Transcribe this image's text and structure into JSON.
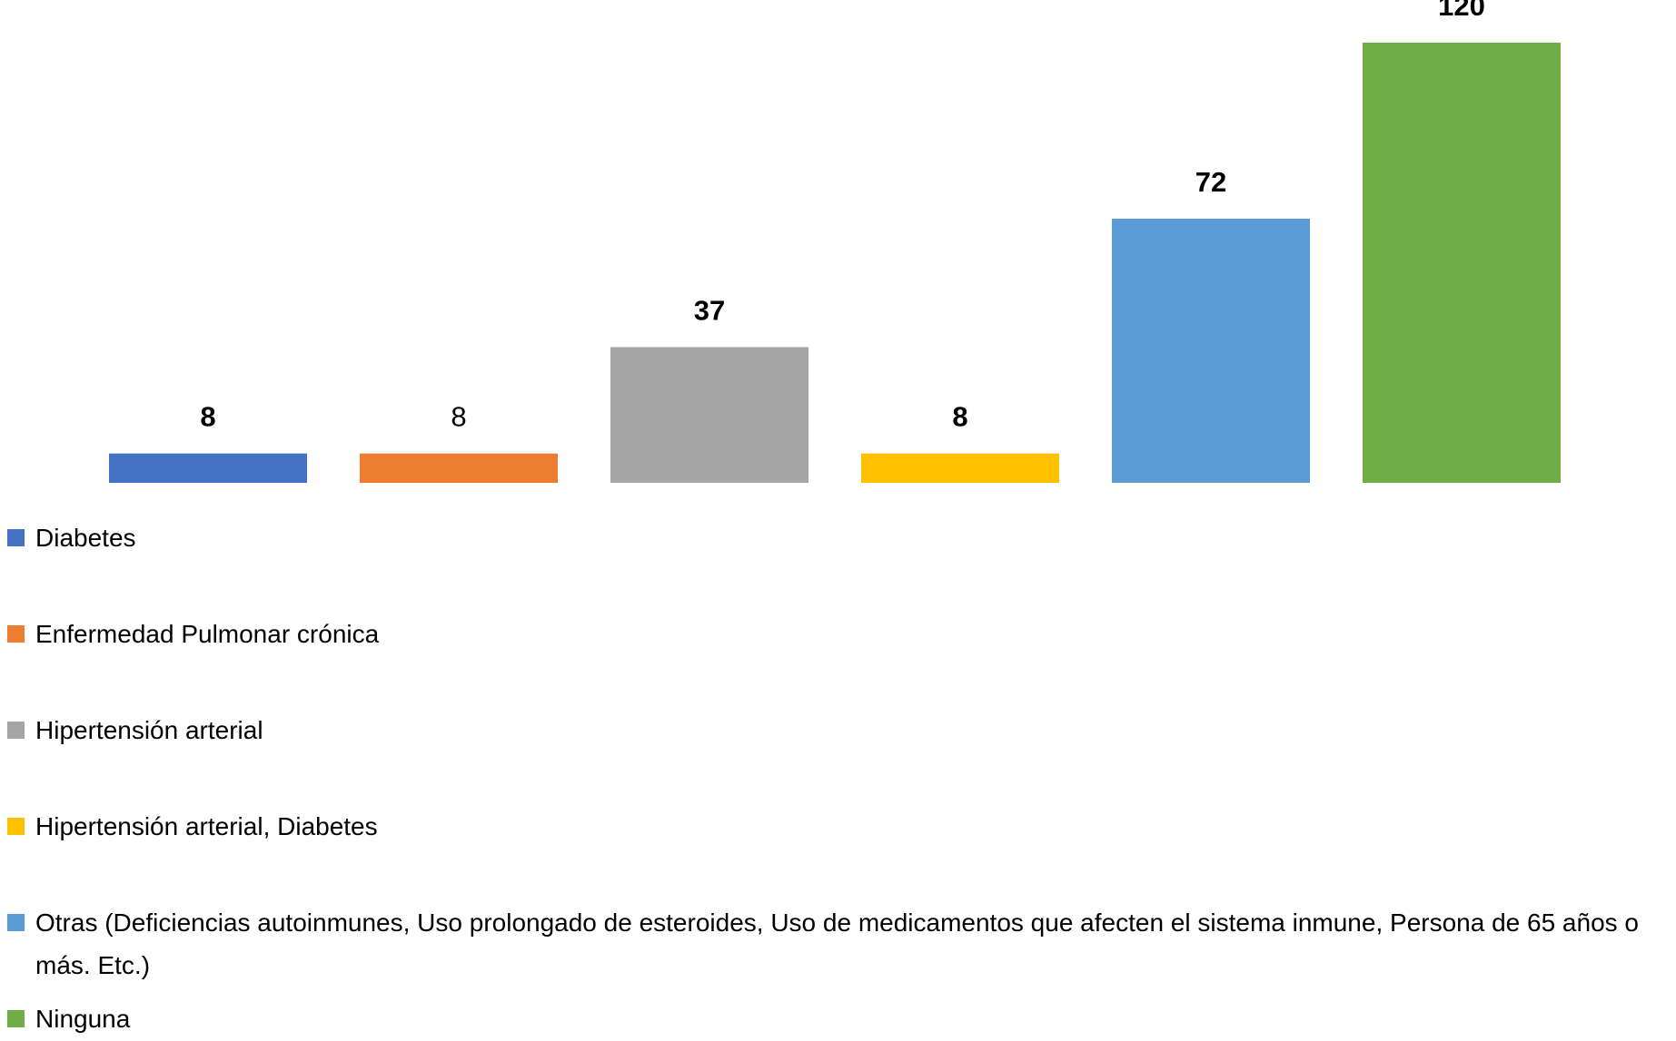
{
  "chart_data": {
    "type": "bar",
    "series": [
      {
        "name": "Diabetes",
        "color": "#4472c4",
        "values": [
          8
        ]
      },
      {
        "name": "Enfermedad Pulmonar crónica",
        "color": "#ed7d31",
        "values": [
          8
        ]
      },
      {
        "name": "Hipertensión arterial",
        "color": "#a5a5a5",
        "values": [
          37
        ]
      },
      {
        "name": "Hipertensión arterial, Diabetes",
        "color": "#ffc000",
        "values": [
          8
        ]
      },
      {
        "name": "Otras (Deficiencias autoinmunes, Uso prolongado de esteroides, Uso de medicamentos que afecten el sistema inmune, Persona de 65 años o más. Etc.)",
        "color": "#5b9bd5",
        "values": [
          72
        ]
      },
      {
        "name": "Ninguna",
        "color": "#70ad47",
        "values": [
          120
        ]
      }
    ]
  }
}
